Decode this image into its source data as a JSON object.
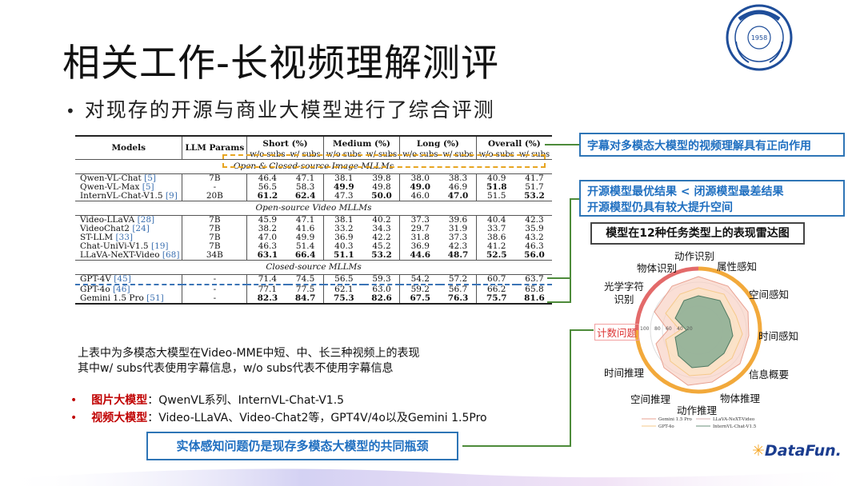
{
  "slide": {
    "title": "相关工作-长视频理解测评",
    "subtitle": "对现存的开源与商业大模型进行了综合评测"
  },
  "table": {
    "head": {
      "models": "Models",
      "llm_params": "LLM Params",
      "short": "Short (%)",
      "medium": "Medium (%)",
      "long": "Long (%)",
      "overall": "Overall (%)",
      "wo_subs": "w/o subs",
      "w_subs": "w/ subs"
    },
    "sections": [
      {
        "title": "Open & Closed-source Image MLLMs",
        "rows": [
          {
            "name": "Qwen-VL-Chat",
            "ref": "[5]",
            "params": "7B",
            "vals": [
              "46.4",
              "47.1",
              "38.1",
              "39.8",
              "38.0",
              "38.3",
              "40.9",
              "41.7"
            ],
            "bold": []
          },
          {
            "name": "Qwen-VL-Max",
            "ref": "[5]",
            "params": "-",
            "vals": [
              "56.5",
              "58.3",
              "49.9",
              "49.8",
              "49.0",
              "46.9",
              "51.8",
              "51.7"
            ],
            "bold": [
              2,
              4,
              6
            ]
          },
          {
            "name": "InternVL-Chat-V1.5",
            "ref": "[9]",
            "params": "20B",
            "vals": [
              "61.2",
              "62.4",
              "47.3",
              "50.0",
              "46.0",
              "47.0",
              "51.5",
              "53.2"
            ],
            "bold": [
              0,
              1,
              3,
              5,
              7
            ]
          }
        ]
      },
      {
        "title": "Open-source Video MLLMs",
        "rows": [
          {
            "name": "Video-LLaVA",
            "ref": "[28]",
            "params": "7B",
            "vals": [
              "45.9",
              "47.1",
              "38.1",
              "40.2",
              "37.3",
              "39.6",
              "40.4",
              "42.3"
            ],
            "bold": []
          },
          {
            "name": "VideoChat2",
            "ref": "[24]",
            "params": "7B",
            "vals": [
              "38.2",
              "41.6",
              "33.2",
              "34.3",
              "29.7",
              "31.9",
              "33.7",
              "35.9"
            ],
            "bold": []
          },
          {
            "name": "ST-LLM",
            "ref": "[33]",
            "params": "7B",
            "vals": [
              "47.0",
              "49.9",
              "36.9",
              "42.2",
              "31.8",
              "37.3",
              "38.6",
              "43.2"
            ],
            "bold": []
          },
          {
            "name": "Chat-UniVi-V1.5",
            "ref": "[19]",
            "params": "7B",
            "vals": [
              "46.3",
              "51.4",
              "40.3",
              "45.2",
              "36.9",
              "42.3",
              "41.2",
              "46.3"
            ],
            "bold": []
          },
          {
            "name": "LLaVA-NeXT-Video",
            "ref": "[68]",
            "params": "34B",
            "vals": [
              "63.1",
              "66.4",
              "51.1",
              "53.2",
              "44.6",
              "48.7",
              "52.5",
              "56.0"
            ],
            "bold": [
              0,
              1,
              2,
              3,
              4,
              5,
              6,
              7
            ]
          }
        ]
      },
      {
        "title": "Closed-source MLLMs",
        "rows": [
          {
            "name": "GPT-4V",
            "ref": "[45]",
            "params": "-",
            "vals": [
              "71.4",
              "74.5",
              "56.5",
              "59.3",
              "54.2",
              "57.2",
              "60.7",
              "63.7"
            ],
            "bold": []
          },
          {
            "name": "GPT-4o",
            "ref": "[46]",
            "params": "-",
            "vals": [
              "77.1",
              "77.5",
              "62.1",
              "63.0",
              "59.2",
              "56.7",
              "66.2",
              "65.8"
            ],
            "bold": []
          },
          {
            "name": "Gemini 1.5 Pro",
            "ref": "[51]",
            "params": "-",
            "vals": [
              "82.3",
              "84.7",
              "75.3",
              "82.6",
              "67.5",
              "76.3",
              "75.7",
              "81.6"
            ],
            "bold": [
              0,
              1,
              2,
              3,
              4,
              5,
              6,
              7
            ]
          }
        ]
      }
    ]
  },
  "callouts": {
    "subs": "字幕对多模态大模型的视频理解具有正向作用",
    "open_source_line1": "开源模型最优结果 < 闭源模型最差结果",
    "open_source_line2": "开源模型仍具有较大提升空间",
    "bottleneck": "实体感知问题仍是现存多模态大模型的共同瓶颈"
  },
  "radar": {
    "title": "模型在12种任务类型上的表现雷达图",
    "labels": [
      "动作识别",
      "属性感知",
      "空间感知",
      "时间感知",
      "信息概要",
      "物体推理",
      "动作推理",
      "空间推理",
      "时间推理",
      "计数问题",
      "光学字符识别",
      "物体识别"
    ],
    "ticks": [
      "100",
      "80",
      "60",
      "40",
      "20"
    ],
    "legend": [
      "Gemini 1.5 Pro",
      "LLaVA-NeXT-Video",
      "GPT-4o",
      "InternVL-Chat-V1.5"
    ],
    "colors": {
      "gemini": "#e8a090",
      "llava": "#d9b0b0",
      "gpt4o": "#f5c98a",
      "internvl": "#6a8f7a"
    }
  },
  "notes": {
    "line1": "上表中为多模态大模型在Video-MME中短、中、长三种视频上的表现",
    "line2": "其中w/ subs代表使用字幕信息，w/o subs代表不使用字幕信息"
  },
  "bullets": [
    {
      "label": "图片大模型",
      "text": "：QwenVL系列、InternVL-Chat-V1.5"
    },
    {
      "label": "视频大模型",
      "text": "：Video-LLaVA、Video-Chat2等，GPT4V/4o以及Gemini 1.5Pro"
    }
  ],
  "branding": {
    "datafun": "DataFun.",
    "emblem_year": "1958"
  }
}
